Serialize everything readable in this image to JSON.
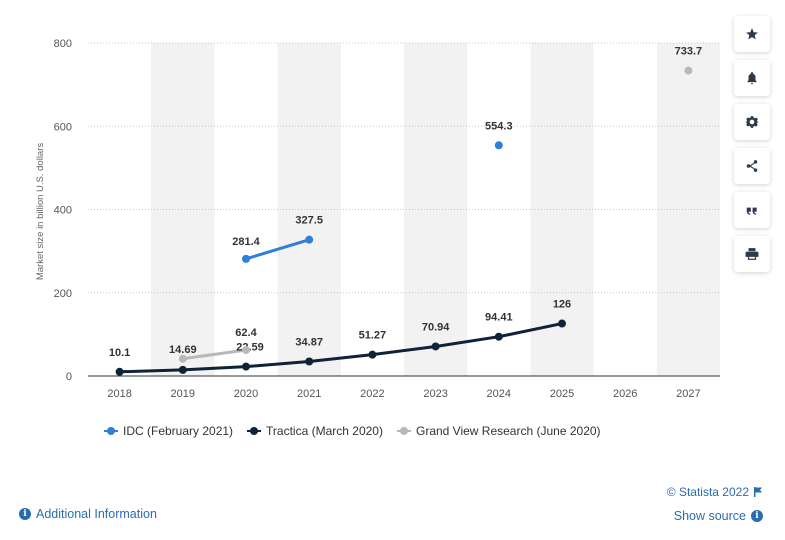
{
  "chart_data": {
    "type": "line",
    "categories": [
      "2018",
      "2019",
      "2020",
      "2021",
      "2022",
      "2023",
      "2024",
      "2025",
      "2026",
      "2027"
    ],
    "ylabel": "Market size in billion U.S. dollars",
    "ylim": [
      0,
      800
    ],
    "yticks": [
      "0",
      "200",
      "400",
      "600",
      "800"
    ],
    "grid": true,
    "legend_position": "bottom",
    "series": [
      {
        "name": "IDC (February 2021)",
        "color": "#2f7ed8",
        "points": [
          {
            "x": "2020",
            "y": 281.4,
            "label": "281.4"
          },
          {
            "x": "2021",
            "y": 327.5,
            "label": "327.5"
          },
          {
            "x": "2024",
            "y": 554.3,
            "label": "554.3"
          }
        ]
      },
      {
        "name": "Tractica (March 2020)",
        "color": "#0e2238",
        "points": [
          {
            "x": "2018",
            "y": 10.1,
            "label": "10.1"
          },
          {
            "x": "2019",
            "y": 14.69,
            "label": "14.69"
          },
          {
            "x": "2020",
            "y": 22.59,
            "label": "22.59"
          },
          {
            "x": "2021",
            "y": 34.87,
            "label": "34.87"
          },
          {
            "x": "2022",
            "y": 51.27,
            "label": "51.27"
          },
          {
            "x": "2023",
            "y": 70.94,
            "label": "70.94"
          },
          {
            "x": "2024",
            "y": 94.41,
            "label": "94.41"
          },
          {
            "x": "2025",
            "y": 126,
            "label": "126"
          }
        ]
      },
      {
        "name": "Grand View Research (June 2020)",
        "color": "#b8b8b8",
        "points": [
          {
            "x": "2019",
            "y": 41.5,
            "label": ""
          },
          {
            "x": "2020",
            "y": 62.4,
            "label": "62.4"
          },
          {
            "x": "2027",
            "y": 733.7,
            "label": "733.7"
          }
        ]
      }
    ]
  },
  "toolbar": {
    "buttons": [
      "star-icon",
      "bell-icon",
      "gear-icon",
      "share-icon",
      "quote-icon",
      "print-icon"
    ]
  },
  "footer": {
    "additional_info": "Additional Information",
    "credit": "© Statista 2022",
    "show_source": "Show source"
  },
  "colors": {
    "link": "#2b6cb0",
    "band": "#f2f2f2",
    "grid": "#c8c8c8"
  }
}
